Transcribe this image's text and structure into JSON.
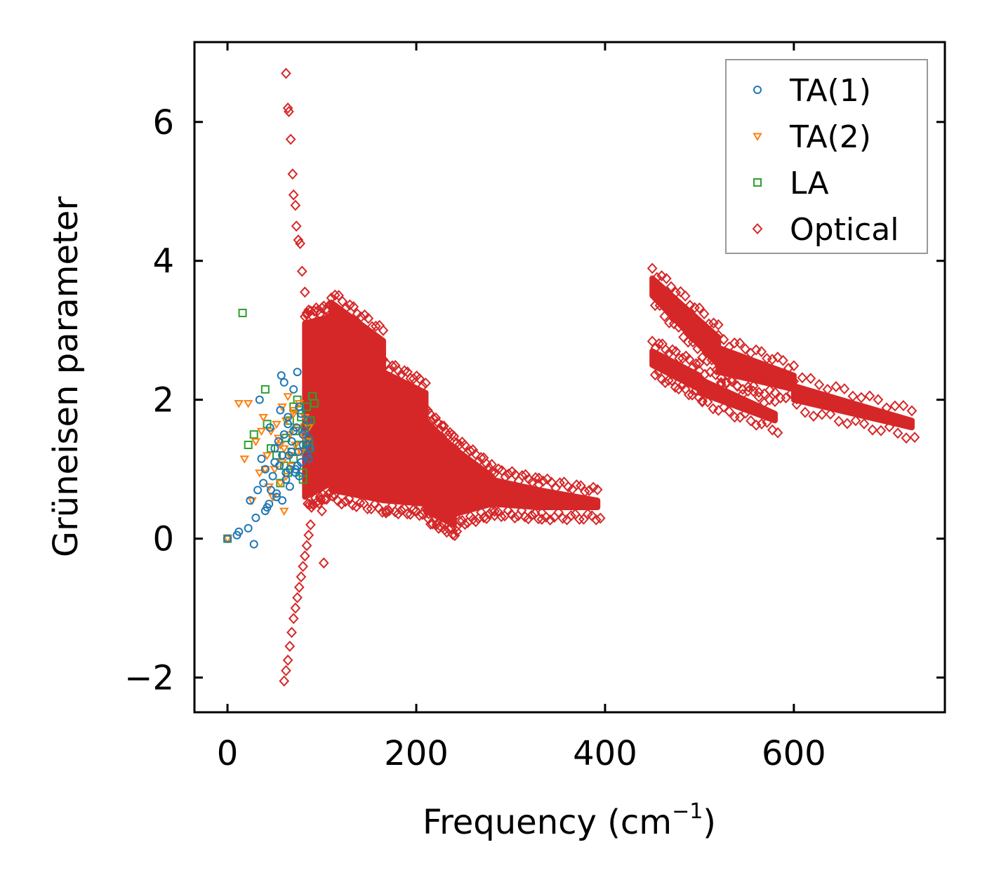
{
  "chart_data": {
    "type": "scatter",
    "title": "",
    "xlabel": "Frequency (cm",
    "xlabel_sup": "−1",
    "xlabel_close": ")",
    "ylabel": "Grüneisen parameter",
    "xlim": [
      -35,
      760
    ],
    "ylim": [
      -2.5,
      7.15
    ],
    "xticks": [
      0,
      200,
      400,
      600
    ],
    "xtick_labels": [
      "0",
      "200",
      "400",
      "600"
    ],
    "yticks": [
      -2,
      0,
      2,
      4,
      6
    ],
    "ytick_labels": [
      "−2",
      "0",
      "2",
      "4",
      "6"
    ],
    "grid": false,
    "legend_position": "top-right",
    "legend": [
      "TA(1)",
      "TA(2)",
      "LA",
      "Optical"
    ],
    "colors": {
      "TA(1)": "#1f77b4",
      "TA(2)": "#ff7f0e",
      "LA": "#2ca02c",
      "Optical": "#d62728"
    },
    "series": [
      {
        "name": "TA(1)",
        "marker": "circle",
        "x": [
          0,
          10,
          12,
          22,
          24,
          28,
          30,
          32,
          34,
          36,
          40,
          42,
          45,
          48,
          50,
          52,
          55,
          57,
          58,
          60,
          60,
          62,
          64,
          65,
          66,
          68,
          70,
          72,
          73,
          74,
          75,
          76,
          78,
          78,
          80,
          82,
          84,
          85,
          86,
          88,
          38,
          44,
          50,
          56,
          62,
          68,
          74,
          80,
          46,
          54,
          64,
          72,
          84,
          58,
          66,
          76,
          52,
          70,
          86,
          40
        ],
        "y": [
          0.0,
          0.05,
          0.1,
          0.15,
          0.55,
          -0.08,
          0.3,
          0.7,
          2.0,
          1.15,
          1.0,
          0.45,
          1.6,
          0.9,
          1.3,
          0.6,
          1.05,
          2.35,
          0.55,
          2.25,
          1.5,
          0.85,
          1.75,
          1.2,
          0.75,
          1.4,
          2.15,
          1.0,
          1.6,
          2.4,
          1.25,
          0.9,
          1.8,
          1.1,
          1.35,
          1.55,
          1.2,
          1.7,
          1.45,
          1.3,
          0.8,
          0.5,
          1.1,
          1.85,
          0.95,
          1.25,
          1.05,
          1.5,
          0.7,
          1.4,
          1.65,
          0.95,
          1.35,
          1.2,
          1.0,
          1.9,
          0.65,
          1.55,
          1.15,
          0.4
        ]
      },
      {
        "name": "TA(2)",
        "marker": "triangle-down",
        "x": [
          0,
          12,
          18,
          22,
          26,
          30,
          34,
          38,
          42,
          46,
          50,
          52,
          56,
          58,
          60,
          62,
          64,
          66,
          68,
          70,
          72,
          74,
          76,
          78,
          80,
          82,
          84,
          86,
          44,
          54,
          48,
          36,
          60,
          66,
          40,
          70,
          58,
          62,
          56,
          74
        ],
        "y": [
          0.0,
          1.95,
          1.15,
          1.95,
          0.55,
          1.4,
          0.95,
          1.75,
          1.2,
          1.55,
          1.0,
          1.65,
          0.8,
          1.9,
          1.3,
          1.7,
          2.05,
          1.5,
          1.05,
          1.8,
          1.35,
          1.6,
          1.95,
          1.25,
          1.5,
          1.75,
          1.4,
          1.6,
          0.75,
          1.45,
          0.6,
          1.55,
          0.4,
          1.2,
          1.0,
          1.85,
          1.1,
          0.9,
          1.35,
          1.25
        ]
      },
      {
        "name": "LA",
        "marker": "square",
        "x": [
          0,
          16,
          22,
          28,
          40,
          42,
          46,
          52,
          56,
          60,
          62,
          64,
          66,
          68,
          70,
          72,
          74,
          76,
          78,
          80,
          82,
          84,
          86,
          88,
          90,
          92,
          70,
          80,
          86,
          76
        ],
        "y": [
          0.0,
          3.25,
          1.35,
          1.5,
          2.15,
          1.65,
          1.3,
          1.2,
          0.8,
          1.05,
          1.45,
          0.95,
          1.7,
          1.25,
          1.9,
          1.55,
          2.0,
          1.35,
          1.75,
          0.85,
          1.6,
          1.9,
          1.4,
          1.7,
          2.05,
          1.95,
          1.15,
          0.95,
          1.3,
          1.85
        ]
      },
      {
        "name": "Optical",
        "marker": "diamond",
        "x": [
          62,
          64,
          65,
          67,
          69,
          70,
          72,
          73,
          75,
          77,
          79,
          82,
          84,
          86,
          60,
          62,
          64,
          66,
          68,
          70,
          72,
          74,
          76,
          78,
          80,
          82,
          84,
          86,
          88,
          90,
          92,
          94,
          96,
          98,
          100,
          102
        ],
        "y": [
          6.7,
          6.2,
          6.15,
          5.75,
          5.25,
          4.95,
          4.8,
          4.5,
          4.3,
          4.25,
          3.85,
          3.55,
          3.25,
          3.0,
          -2.05,
          -1.9,
          -1.75,
          -1.55,
          -1.35,
          -1.15,
          -1.0,
          -0.85,
          -0.7,
          -0.55,
          -0.4,
          -0.25,
          -0.1,
          0.05,
          0.2,
          0.5,
          0.7,
          0.85,
          1.0,
          0.6,
          0.4,
          -0.35
        ],
        "dense_regions": [
          {
            "x_from": 82,
            "x_to": 110,
            "y_low_from": 0.6,
            "y_low_to": 0.8,
            "y_high_from": 3.1,
            "y_high_to": 3.2
          },
          {
            "x_from": 110,
            "x_to": 165,
            "y_low_from": 0.7,
            "y_low_to": 0.55,
            "y_high_from": 3.4,
            "y_high_to": 2.85
          },
          {
            "x_from": 165,
            "x_to": 210,
            "y_low_from": 0.55,
            "y_low_to": 0.5,
            "y_high_from": 2.4,
            "y_high_to": 2.1
          },
          {
            "x_from": 210,
            "x_to": 240,
            "y_low_from": 0.4,
            "y_low_to": 0.2,
            "y_high_from": 1.7,
            "y_high_to": 1.3
          },
          {
            "x_from": 240,
            "x_to": 280,
            "y_low_from": 0.35,
            "y_low_to": 0.5,
            "y_high_from": 1.3,
            "y_high_to": 0.9
          },
          {
            "x_from": 280,
            "x_to": 330,
            "y_low_from": 0.5,
            "y_low_to": 0.45,
            "y_high_from": 0.85,
            "y_high_to": 0.7
          },
          {
            "x_from": 330,
            "x_to": 392,
            "y_low_from": 0.45,
            "y_low_to": 0.45,
            "y_high_from": 0.7,
            "y_high_to": 0.55
          },
          {
            "x_from": 450,
            "x_to": 520,
            "y_low_from": 3.5,
            "y_low_to": 2.5,
            "y_high_from": 3.75,
            "y_high_to": 2.9
          },
          {
            "x_from": 520,
            "x_to": 600,
            "y_low_from": 2.4,
            "y_low_to": 2.15,
            "y_high_from": 2.75,
            "y_high_to": 2.35
          },
          {
            "x_from": 600,
            "x_to": 725,
            "y_low_from": 2.0,
            "y_low_to": 1.6,
            "y_high_from": 2.2,
            "y_high_to": 1.7
          },
          {
            "x_from": 450,
            "x_to": 500,
            "y_low_from": 2.5,
            "y_low_to": 2.15,
            "y_high_from": 2.7,
            "y_high_to": 2.35
          },
          {
            "x_from": 500,
            "x_to": 580,
            "y_low_from": 2.1,
            "y_low_to": 1.7,
            "y_high_from": 2.3,
            "y_high_to": 1.8
          }
        ]
      }
    ]
  }
}
